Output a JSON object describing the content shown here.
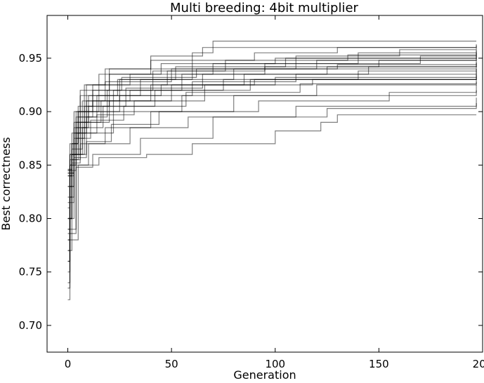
{
  "chart_data": {
    "type": "line",
    "title": "Multi breeding: 4bit multiplier",
    "xlabel": "Generation",
    "ylabel": "Best correctness",
    "xlim": [
      -10,
      200
    ],
    "ylim": [
      0.675,
      0.99
    ],
    "xticks": [
      0,
      50,
      100,
      150,
      200
    ],
    "yticks": [
      0.7,
      0.75,
      0.8,
      0.85,
      0.9,
      0.95
    ],
    "ytick_format": 2,
    "grid": false,
    "legend": "none",
    "line_color": "#000000",
    "line_opacity": 0.5,
    "series": [
      {
        "points": [
          [
            0,
            0.724
          ],
          [
            1,
            0.8
          ],
          [
            2,
            0.86
          ],
          [
            4,
            0.9
          ],
          [
            8,
            0.925
          ],
          [
            20,
            0.94
          ],
          [
            60,
            0.955
          ],
          [
            70,
            0.966
          ],
          [
            197,
            0.966
          ]
        ]
      },
      {
        "points": [
          [
            0,
            0.735
          ],
          [
            1,
            0.82
          ],
          [
            3,
            0.88
          ],
          [
            6,
            0.915
          ],
          [
            15,
            0.935
          ],
          [
            40,
            0.948
          ],
          [
            90,
            0.955
          ],
          [
            130,
            0.96
          ],
          [
            197,
            0.962
          ]
        ]
      },
      {
        "points": [
          [
            0,
            0.75
          ],
          [
            1,
            0.84
          ],
          [
            3,
            0.89
          ],
          [
            7,
            0.91
          ],
          [
            18,
            0.928
          ],
          [
            50,
            0.94
          ],
          [
            110,
            0.952
          ],
          [
            160,
            0.958
          ],
          [
            197,
            0.96
          ]
        ]
      },
      {
        "points": [
          [
            0,
            0.76
          ],
          [
            1,
            0.83
          ],
          [
            2,
            0.87
          ],
          [
            5,
            0.905
          ],
          [
            12,
            0.925
          ],
          [
            30,
            0.935
          ],
          [
            70,
            0.945
          ],
          [
            140,
            0.955
          ],
          [
            197,
            0.958
          ]
        ]
      },
      {
        "points": [
          [
            0,
            0.78
          ],
          [
            1,
            0.845
          ],
          [
            4,
            0.88
          ],
          [
            9,
            0.91
          ],
          [
            25,
            0.93
          ],
          [
            60,
            0.94
          ],
          [
            120,
            0.948
          ],
          [
            197,
            0.955
          ]
        ]
      },
      {
        "points": [
          [
            0,
            0.77
          ],
          [
            1,
            0.85
          ],
          [
            3,
            0.9
          ],
          [
            6,
            0.92
          ],
          [
            20,
            0.935
          ],
          [
            45,
            0.945
          ],
          [
            100,
            0.95
          ],
          [
            197,
            0.953
          ]
        ]
      },
      {
        "points": [
          [
            0,
            0.79
          ],
          [
            1,
            0.85
          ],
          [
            2,
            0.88
          ],
          [
            8,
            0.9
          ],
          [
            22,
            0.92
          ],
          [
            55,
            0.935
          ],
          [
            95,
            0.942
          ],
          [
            150,
            0.948
          ],
          [
            197,
            0.95
          ]
        ]
      },
      {
        "points": [
          [
            0,
            0.8
          ],
          [
            2,
            0.86
          ],
          [
            5,
            0.895
          ],
          [
            14,
            0.915
          ],
          [
            35,
            0.93
          ],
          [
            80,
            0.94
          ],
          [
            197,
            0.948
          ]
        ]
      },
      {
        "points": [
          [
            0,
            0.81
          ],
          [
            1,
            0.86
          ],
          [
            4,
            0.885
          ],
          [
            10,
            0.905
          ],
          [
            28,
            0.922
          ],
          [
            65,
            0.935
          ],
          [
            125,
            0.942
          ],
          [
            197,
            0.945
          ]
        ]
      },
      {
        "points": [
          [
            0,
            0.82
          ],
          [
            2,
            0.855
          ],
          [
            6,
            0.89
          ],
          [
            16,
            0.91
          ],
          [
            40,
            0.925
          ],
          [
            85,
            0.935
          ],
          [
            145,
            0.942
          ],
          [
            197,
            0.943
          ]
        ]
      },
      {
        "points": [
          [
            0,
            0.83
          ],
          [
            1,
            0.86
          ],
          [
            3,
            0.885
          ],
          [
            9,
            0.9
          ],
          [
            25,
            0.915
          ],
          [
            60,
            0.928
          ],
          [
            110,
            0.935
          ],
          [
            197,
            0.94
          ]
        ]
      },
      {
        "points": [
          [
            0,
            0.84
          ],
          [
            2,
            0.865
          ],
          [
            7,
            0.89
          ],
          [
            20,
            0.91
          ],
          [
            50,
            0.925
          ],
          [
            100,
            0.932
          ],
          [
            197,
            0.938
          ]
        ]
      },
      {
        "points": [
          [
            0,
            0.845
          ],
          [
            1,
            0.87
          ],
          [
            4,
            0.895
          ],
          [
            12,
            0.91
          ],
          [
            30,
            0.92
          ],
          [
            75,
            0.93
          ],
          [
            197,
            0.935
          ]
        ]
      },
      {
        "points": [
          [
            0,
            0.846
          ],
          [
            2,
            0.87
          ],
          [
            5,
            0.9
          ],
          [
            15,
            0.915
          ],
          [
            45,
            0.925
          ],
          [
            90,
            0.93
          ],
          [
            197,
            0.932
          ]
        ]
      },
      {
        "points": [
          [
            0,
            0.842
          ],
          [
            3,
            0.86
          ],
          [
            8,
            0.88
          ],
          [
            22,
            0.9
          ],
          [
            55,
            0.915
          ],
          [
            120,
            0.925
          ],
          [
            197,
            0.928
          ]
        ]
      },
      {
        "points": [
          [
            0,
            0.84
          ],
          [
            2,
            0.852
          ],
          [
            6,
            0.87
          ],
          [
            18,
            0.885
          ],
          [
            40,
            0.9
          ],
          [
            80,
            0.915
          ],
          [
            197,
            0.92
          ]
        ]
      },
      {
        "points": [
          [
            0,
            0.8
          ],
          [
            3,
            0.85
          ],
          [
            10,
            0.87
          ],
          [
            30,
            0.885
          ],
          [
            58,
            0.895
          ],
          [
            110,
            0.905
          ],
          [
            197,
            0.913
          ]
        ]
      },
      {
        "points": [
          [
            0,
            0.79
          ],
          [
            4,
            0.848
          ],
          [
            12,
            0.86
          ],
          [
            35,
            0.875
          ],
          [
            70,
            0.895
          ],
          [
            125,
            0.903
          ],
          [
            197,
            0.908
          ]
        ]
      },
      {
        "points": [
          [
            0,
            0.78
          ],
          [
            5,
            0.85
          ],
          [
            15,
            0.857
          ],
          [
            38,
            0.86
          ],
          [
            60,
            0.87
          ],
          [
            100,
            0.882
          ],
          [
            122,
            0.89
          ],
          [
            130,
            0.897
          ],
          [
            197,
            0.897
          ]
        ]
      },
      {
        "points": [
          [
            0,
            0.76
          ],
          [
            1,
            0.83
          ],
          [
            3,
            0.87
          ],
          [
            5,
            0.9
          ],
          [
            9,
            0.925
          ],
          [
            18,
            0.94
          ],
          [
            40,
            0.952
          ],
          [
            65,
            0.96
          ],
          [
            197,
            0.963
          ]
        ]
      },
      {
        "points": [
          [
            0,
            0.77
          ],
          [
            2,
            0.85
          ],
          [
            4,
            0.89
          ],
          [
            10,
            0.915
          ],
          [
            24,
            0.93
          ],
          [
            52,
            0.942
          ],
          [
            105,
            0.95
          ],
          [
            197,
            0.957
          ]
        ]
      },
      {
        "points": [
          [
            0,
            0.74
          ],
          [
            1,
            0.83
          ],
          [
            3,
            0.875
          ],
          [
            8,
            0.905
          ],
          [
            20,
            0.925
          ],
          [
            48,
            0.938
          ],
          [
            95,
            0.945
          ],
          [
            170,
            0.952
          ],
          [
            197,
            0.952
          ]
        ]
      },
      {
        "points": [
          [
            0,
            0.8
          ],
          [
            2,
            0.86
          ],
          [
            6,
            0.9
          ],
          [
            12,
            0.92
          ],
          [
            26,
            0.932
          ],
          [
            62,
            0.94
          ],
          [
            130,
            0.944
          ],
          [
            197,
            0.946
          ]
        ]
      },
      {
        "points": [
          [
            0,
            0.815
          ],
          [
            3,
            0.86
          ],
          [
            7,
            0.885
          ],
          [
            17,
            0.905
          ],
          [
            42,
            0.92
          ],
          [
            88,
            0.93
          ],
          [
            140,
            0.938
          ],
          [
            197,
            0.94
          ]
        ]
      },
      {
        "points": [
          [
            0,
            0.83
          ],
          [
            1,
            0.855
          ],
          [
            5,
            0.88
          ],
          [
            14,
            0.897
          ],
          [
            32,
            0.91
          ],
          [
            66,
            0.925
          ],
          [
            118,
            0.93
          ],
          [
            197,
            0.934
          ]
        ]
      },
      {
        "points": [
          [
            0,
            0.845
          ],
          [
            2,
            0.86
          ],
          [
            4,
            0.875
          ],
          [
            11,
            0.892
          ],
          [
            27,
            0.905
          ],
          [
            57,
            0.918
          ],
          [
            112,
            0.926
          ],
          [
            197,
            0.93
          ]
        ]
      },
      {
        "points": [
          [
            0,
            0.843
          ],
          [
            3,
            0.857
          ],
          [
            9,
            0.872
          ],
          [
            21,
            0.888
          ],
          [
            44,
            0.9
          ],
          [
            92,
            0.91
          ],
          [
            155,
            0.918
          ],
          [
            197,
            0.925
          ]
        ]
      },
      {
        "points": [
          [
            0,
            0.786
          ],
          [
            4,
            0.86
          ],
          [
            9,
            0.895
          ],
          [
            19,
            0.92
          ],
          [
            41,
            0.938
          ],
          [
            76,
            0.948
          ],
          [
            135,
            0.953
          ],
          [
            197,
            0.955
          ]
        ]
      }
    ]
  }
}
